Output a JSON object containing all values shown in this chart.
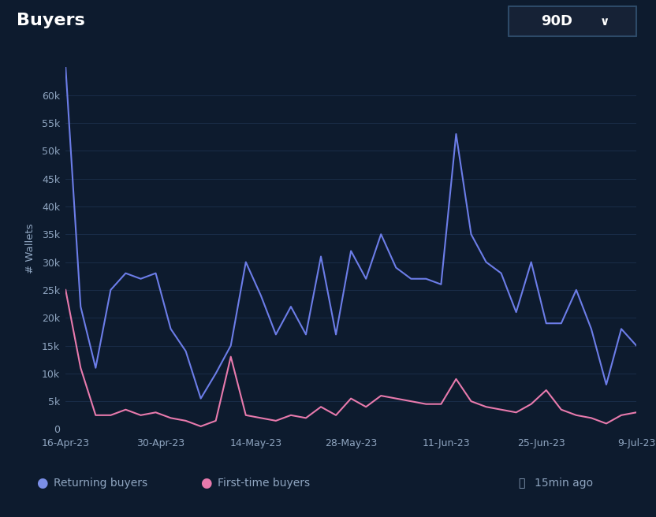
{
  "title": "Buyers",
  "button_label": "90D",
  "ylabel": "# Wallets",
  "x_labels": [
    "16-Apr-23",
    "30-Apr-23",
    "14-May-23",
    "28-May-23",
    "11-Jun-23",
    "25-Jun-23",
    "9-Jul-23"
  ],
  "returning_buyers": [
    65000,
    22000,
    11000,
    25000,
    28000,
    27000,
    28000,
    18000,
    14000,
    5500,
    10000,
    15000,
    30000,
    24000,
    17000,
    22000,
    17000,
    31000,
    17000,
    32000,
    27000,
    35000,
    29000,
    27000,
    27000,
    26000,
    53000,
    35000,
    30000,
    28000,
    21000,
    30000,
    19000,
    19000,
    25000,
    18000,
    8000,
    18000,
    15000
  ],
  "first_time_buyers": [
    25000,
    11000,
    2500,
    2500,
    3500,
    2500,
    3000,
    2000,
    1500,
    500,
    1500,
    13000,
    2500,
    2000,
    1500,
    2500,
    2000,
    4000,
    2500,
    5500,
    4000,
    6000,
    5500,
    5000,
    4500,
    4500,
    9000,
    5000,
    4000,
    3500,
    3000,
    4500,
    7000,
    3500,
    2500,
    2000,
    1000,
    2500,
    3000
  ],
  "background_color": "#0d1b2e",
  "plot_bg_color": "#0d1b2e",
  "grid_color": "#1a2d48",
  "returning_color": "#6c7de8",
  "first_time_color": "#e87aad",
  "text_color": "#8fa5c0",
  "title_color": "#ffffff",
  "tick_label_color": "#8fa5c0",
  "ylim": [
    0,
    65000
  ],
  "yticks": [
    0,
    5000,
    10000,
    15000,
    20000,
    25000,
    30000,
    35000,
    40000,
    45000,
    50000,
    55000,
    60000
  ],
  "legend_returning": "Returning buyers",
  "legend_first_time": "First-time buyers",
  "update_text": "15min ago",
  "button_bg": "#162236",
  "button_border": "#2d4a68",
  "returning_legend_color": "#7b8fe8",
  "first_time_legend_color": "#e87aad"
}
